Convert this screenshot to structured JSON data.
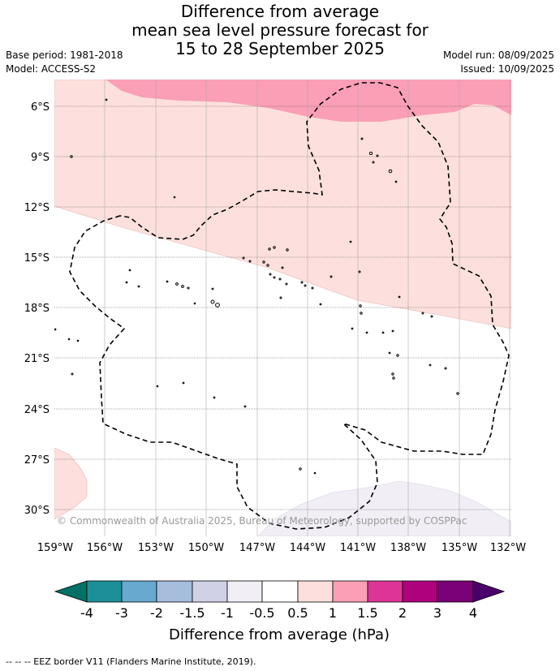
{
  "title": {
    "line1": "Difference from average",
    "line2": "mean sea level pressure forecast for",
    "line3": "15 to 28 September 2025"
  },
  "meta": {
    "base_period": "Base period: 1981-2018",
    "model": "Model: ACCESS-S2",
    "model_run": "Model run: 08/09/2025",
    "issued": "Issued: 10/09/2025"
  },
  "map": {
    "lat_labels": [
      "6°S",
      "9°S",
      "12°S",
      "15°S",
      "18°S",
      "21°S",
      "24°S",
      "27°S",
      "30°S"
    ],
    "lon_labels": [
      "159°W",
      "156°W",
      "153°W",
      "150°W",
      "147°W",
      "144°W",
      "141°W",
      "138°W",
      "135°W",
      "132°W"
    ],
    "copyright": "© Commonwealth of Australia 2025, Bureau of Meteorology, supported by COSPPac",
    "colors": {
      "pos_0_5_to_1": "#fddfdf",
      "pos_1_to_1_5": "#fa9fb5",
      "neg_0_5_to_1": "#f1eef6"
    }
  },
  "colorbar": {
    "ticks": [
      "-4",
      "-3",
      "-2",
      "-1.5",
      "-1",
      "-0.5",
      "0.5",
      "1",
      "1.5",
      "2",
      "3",
      "4"
    ],
    "colors": [
      "#007166",
      "#1c9099",
      "#67a9cf",
      "#a6bddb",
      "#d0d1e6",
      "#f1eef6",
      "#ffffff",
      "#fde0dd",
      "#fa9fb5",
      "#dd3497",
      "#ae017e",
      "#7a0177",
      "#49006a"
    ],
    "label": "Difference from average (hPa)"
  },
  "footer": {
    "legend": "--  --  -- EEZ border V11 (Flanders Marine Institute, 2019)."
  }
}
